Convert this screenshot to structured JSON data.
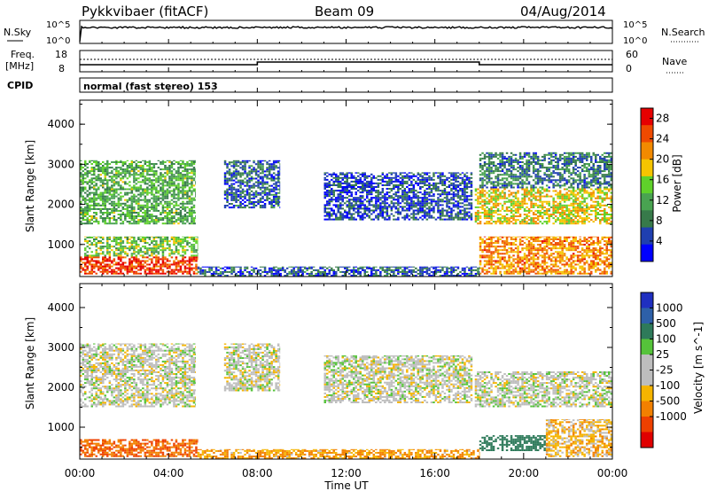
{
  "header": {
    "station": "Pykkvibaer (fitACF)",
    "beam": "Beam 09",
    "date": "04/Aug/2014"
  },
  "panels": {
    "nsky": {
      "label": "N.Sky",
      "ticks_left": [
        "10^5",
        "10^0"
      ],
      "ticks_right": [
        "10^5",
        "10^0"
      ],
      "right_label": "N.Search"
    },
    "freq": {
      "label_line1": "Freq.",
      "label_line2": "[MHz]",
      "ticks_left": [
        "18",
        "8"
      ],
      "ticks_right": [
        "60",
        "0"
      ],
      "right_label": "Nave"
    },
    "cpid": {
      "label": "CPID",
      "text": "normal (fast stereo) 153"
    }
  },
  "colors": {
    "power_scale": [
      "#0000ff",
      "#1f3fb0",
      "#377a4a",
      "#49a351",
      "#5fd12a",
      "#f5c400",
      "#f28a00",
      "#ef4a00",
      "#e60000"
    ],
    "velocity_scale": [
      "#1f2fc0",
      "#2e60a8",
      "#2e7a5a",
      "#55c33a",
      "#bdbdbd",
      "#bdbdbd",
      "#f5b400",
      "#f28000",
      "#ee4000",
      "#e00000"
    ]
  },
  "chart_data": [
    {
      "type": "heatmap",
      "name": "power",
      "ylabel": "Slant Range [km]",
      "x_ticks": [
        "00:00",
        "04:00",
        "08:00",
        "12:00",
        "16:00",
        "20:00",
        "00:00"
      ],
      "y_ticks": [
        "1000",
        "2000",
        "3000",
        "4000"
      ],
      "ylim": [
        200,
        4600
      ],
      "xlim_hours": [
        0,
        24
      ],
      "colorbar_label": "Power [dB]",
      "colorbar_ticks": [
        "4",
        "8",
        "12",
        "16",
        "20",
        "24",
        "28"
      ],
      "colorbar_range": [
        0,
        30
      ],
      "regions": [
        {
          "t0": 0.0,
          "t1": 5.3,
          "r0": 250,
          "r1": 700,
          "level": 26
        },
        {
          "t0": 0.2,
          "t1": 5.3,
          "r0": 700,
          "r1": 1200,
          "level": 14
        },
        {
          "t0": 0.0,
          "t1": 5.2,
          "r0": 1500,
          "r1": 3100,
          "level": 12
        },
        {
          "t0": 6.5,
          "t1": 9.0,
          "r0": 1900,
          "r1": 3100,
          "level": 6
        },
        {
          "t0": 11.0,
          "t1": 17.7,
          "r0": 1600,
          "r1": 2800,
          "level": 5
        },
        {
          "t0": 17.8,
          "t1": 24.0,
          "r0": 1500,
          "r1": 2400,
          "level": 18
        },
        {
          "t0": 18.0,
          "t1": 24.0,
          "r0": 250,
          "r1": 1200,
          "level": 22
        },
        {
          "t0": 18.0,
          "t1": 24.0,
          "r0": 2400,
          "r1": 3300,
          "level": 8
        },
        {
          "t0": 5.3,
          "t1": 18.0,
          "r0": 200,
          "r1": 450,
          "level": 6
        }
      ]
    },
    {
      "type": "heatmap",
      "name": "velocity",
      "ylabel": "Slant Range [km]",
      "xlabel": "Time UT",
      "x_ticks": [
        "00:00",
        "04:00",
        "08:00",
        "12:00",
        "16:00",
        "20:00",
        "00:00"
      ],
      "y_ticks": [
        "1000",
        "2000",
        "3000",
        "4000"
      ],
      "ylim": [
        200,
        4600
      ],
      "xlim_hours": [
        0,
        24
      ],
      "colorbar_label": "Velocity [m s^-1]",
      "colorbar_ticks": [
        "1000",
        "500",
        "100",
        "25",
        "-25",
        "-100",
        "-500",
        "-1000"
      ],
      "regions": [
        {
          "t0": 0.0,
          "t1": 5.3,
          "r0": 250,
          "r1": 700,
          "level": -300
        },
        {
          "t0": 0.0,
          "t1": 5.2,
          "r0": 1500,
          "r1": 3100,
          "level": 0
        },
        {
          "t0": 6.5,
          "t1": 9.0,
          "r0": 1900,
          "r1": 3100,
          "level": 0
        },
        {
          "t0": 11.0,
          "t1": 17.7,
          "r0": 1600,
          "r1": 2800,
          "level": 0
        },
        {
          "t0": 17.8,
          "t1": 24.0,
          "r0": 1500,
          "r1": 2400,
          "level": 0
        },
        {
          "t0": 18.0,
          "t1": 21.0,
          "r0": 400,
          "r1": 800,
          "level": 120
        },
        {
          "t0": 21.0,
          "t1": 24.0,
          "r0": 250,
          "r1": 1200,
          "level": -40
        },
        {
          "t0": 5.3,
          "t1": 18.0,
          "r0": 200,
          "r1": 450,
          "level": -60
        }
      ]
    }
  ]
}
